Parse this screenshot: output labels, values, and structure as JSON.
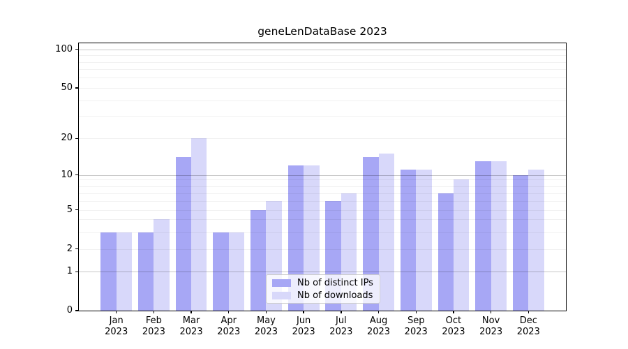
{
  "title": "geneLenDataBase 2023",
  "chart_data": {
    "type": "bar",
    "title": "geneLenDataBase 2023",
    "categories": [
      "Jan",
      "Feb",
      "Mar",
      "Apr",
      "May",
      "Jun",
      "Jul",
      "Aug",
      "Sep",
      "Oct",
      "Nov",
      "Dec"
    ],
    "category_year": "2023",
    "series": [
      {
        "name": "Nb of distinct IPs",
        "color": "#a7a7f5",
        "values": [
          3,
          3,
          14,
          3,
          5,
          12,
          6,
          14,
          11,
          7,
          13,
          10
        ]
      },
      {
        "name": "Nb of downloads",
        "color": "#d8d8fa",
        "values": [
          3,
          4,
          20,
          3,
          6,
          12,
          7,
          15,
          11,
          9,
          13,
          11
        ]
      }
    ],
    "xlabel": "",
    "ylabel": "",
    "yscale": "symlog-like",
    "ylim": [
      0,
      110
    ],
    "yticks": [
      0,
      1,
      2,
      5,
      10,
      20,
      50,
      100
    ],
    "grid_major": [
      1,
      10,
      100
    ],
    "grid_minor": [
      2,
      3,
      4,
      5,
      6,
      7,
      8,
      9,
      20,
      30,
      40,
      50,
      60,
      70,
      80,
      90
    ],
    "grid": "on",
    "legend_position": "bottom-center"
  }
}
